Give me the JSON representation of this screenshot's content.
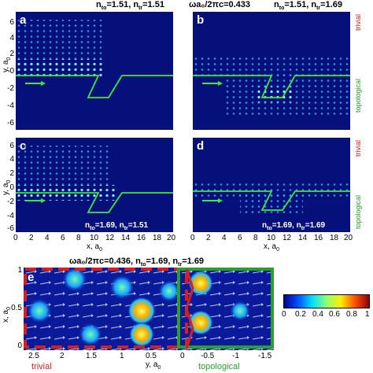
{
  "header": {
    "left": {
      "n_to": "1.51",
      "n_tr": "1.51"
    },
    "middle": "ωa₀/2πc=0.433",
    "right": {
      "n_to": "1.51",
      "n_tr": "1.69"
    }
  },
  "panels": [
    {
      "letter": "a"
    },
    {
      "letter": "b"
    },
    {
      "letter": "c",
      "caption": {
        "n_to": "1.69",
        "n_tr": "1.51"
      }
    },
    {
      "letter": "d",
      "caption": {
        "n_to": "1.69",
        "n_tr": "1.69"
      }
    }
  ],
  "axes": {
    "y_ticks": [
      "6",
      "4",
      "2",
      "0",
      "-2",
      "-4",
      "-6"
    ],
    "x_ticks": [
      "0",
      "2",
      "4",
      "6",
      "8",
      "10",
      "12",
      "14",
      "16",
      "18",
      "20"
    ],
    "y_label": "y, a",
    "y_label_sub": "0",
    "x_label": "x, a",
    "x_label_sub": "0"
  },
  "side_labels": {
    "trivial": "trivial",
    "topological": "topological"
  },
  "panel_e": {
    "letter": "e",
    "title": "ωa₀/2πc=0.436, n",
    "title_to_sub": "to",
    "title_to_val": "=1.69, n",
    "title_tr_sub": "tr",
    "title_tr_val": "=1.69",
    "y_label": "x, a",
    "y_label_sub": "0",
    "y_ticks": [
      "1",
      "0.5",
      "0"
    ],
    "x_ticks": [
      "2.5",
      "2",
      "1.5",
      "1",
      "0.5",
      "0",
      "-0.5",
      "-1",
      "-1.5"
    ],
    "x_label": "y, a",
    "x_label_sub": "0",
    "trivial_label": "trivial",
    "topological_label": "topological"
  },
  "colorbar": {
    "ticks": [
      "0",
      "0.2",
      "0.4",
      "0.6",
      "0.8",
      "1"
    ],
    "colors": [
      "#00008f",
      "#0050ff",
      "#00dfff",
      "#8fff70",
      "#ffef00",
      "#ff5000",
      "#8f0000"
    ]
  },
  "colors": {
    "trivial": "#d42020",
    "topological": "#2aa02a",
    "path": "#3ee83e",
    "background": "#06107a"
  }
}
